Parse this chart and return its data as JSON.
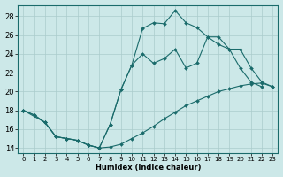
{
  "xlabel": "Humidex (Indice chaleur)",
  "background_color": "#cce8e8",
  "grid_color": "#aacccc",
  "line_color": "#1a6b6b",
  "xlim": [
    -0.5,
    23.5
  ],
  "ylim": [
    13.5,
    29.2
  ],
  "xticks": [
    0,
    1,
    2,
    3,
    4,
    5,
    6,
    7,
    8,
    9,
    10,
    11,
    12,
    13,
    14,
    15,
    16,
    17,
    18,
    19,
    20,
    21,
    22,
    23
  ],
  "yticks": [
    14,
    16,
    18,
    20,
    22,
    24,
    26,
    28
  ],
  "line1_x": [
    0,
    1,
    2,
    3,
    4,
    5,
    6,
    7,
    8,
    9,
    10,
    11,
    12,
    13,
    14,
    15,
    16,
    17,
    18,
    19,
    20,
    21,
    22
  ],
  "line1_y": [
    18,
    17.5,
    16.7,
    15.2,
    15.0,
    14.8,
    14.3,
    14.0,
    16.5,
    20.2,
    22.8,
    26.7,
    27.3,
    27.2,
    28.6,
    27.3,
    26.8,
    25.8,
    25.8,
    24.5,
    22.5,
    21.0,
    20.5
  ],
  "line2_x": [
    0,
    1,
    2,
    3,
    4,
    5,
    6,
    7,
    8,
    9,
    10,
    11,
    12,
    13,
    14,
    15,
    16,
    17,
    18,
    19,
    20,
    21,
    22,
    23
  ],
  "line2_y": [
    18,
    17.5,
    16.7,
    15.2,
    15.0,
    14.8,
    14.3,
    14.0,
    14.1,
    14.4,
    15.0,
    15.6,
    16.3,
    17.1,
    17.8,
    18.5,
    19.0,
    19.5,
    20.0,
    20.3,
    20.6,
    20.8,
    20.9,
    20.5
  ],
  "line3_x": [
    0,
    2,
    3,
    4,
    5,
    6,
    7,
    8,
    9,
    10,
    11,
    12,
    13,
    14,
    15,
    16,
    17,
    18,
    19,
    20,
    21,
    22,
    23
  ],
  "line3_y": [
    18,
    16.7,
    15.2,
    15.0,
    14.8,
    14.3,
    14.0,
    16.5,
    20.2,
    22.8,
    24.0,
    23.0,
    23.5,
    24.5,
    22.5,
    23.0,
    25.8,
    25.0,
    24.5,
    24.5,
    22.5,
    21.0,
    20.5
  ]
}
